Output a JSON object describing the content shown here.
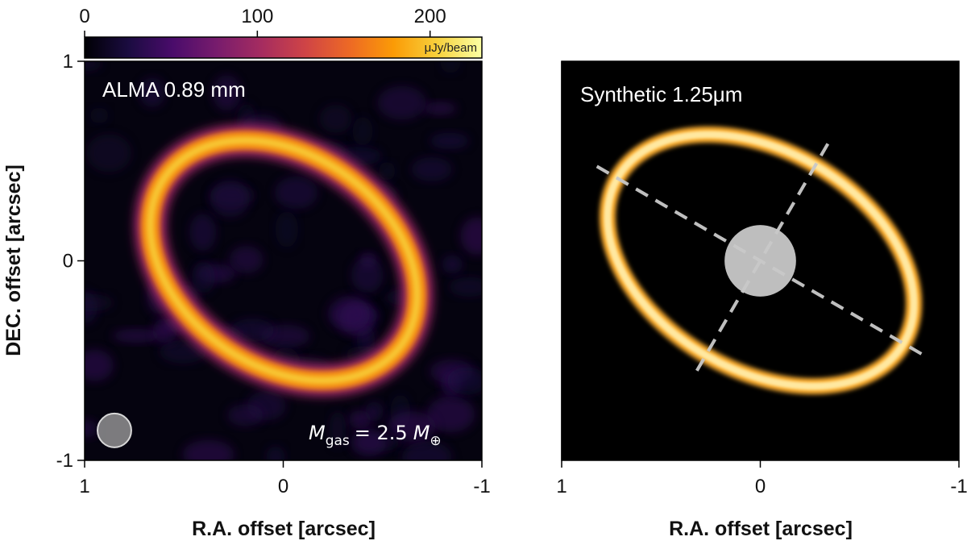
{
  "colors": {
    "inferno": [
      "#000004",
      "#1b0c41",
      "#4a0c6b",
      "#781c6d",
      "#a52c60",
      "#cf4446",
      "#ed6925",
      "#fb9b06",
      "#f7d13d",
      "#fcffa4"
    ],
    "afmhot": [
      "#000000",
      "#3a0000",
      "#7a1800",
      "#c34500",
      "#ef7a10",
      "#ffb030",
      "#ffe8a0"
    ],
    "marker": "#c8c8c8"
  },
  "chart_data": [
    {
      "type": "heatmap",
      "title": "ALMA 0.89 mm",
      "colormap": "inferno",
      "xlabel": "R.A. offset [arcsec]",
      "ylabel": "DEC. offset [arcsec]",
      "xlim": [
        1,
        -1
      ],
      "ylim": [
        -1,
        1
      ],
      "xticks": [
        1,
        0,
        -1
      ],
      "yticks": [
        1,
        0,
        -1
      ],
      "xtick_labels": [
        "1",
        "0",
        "-1"
      ],
      "ytick_labels": [
        "1",
        "0",
        "-1"
      ],
      "colorbar": {
        "range": [
          0,
          230
        ],
        "ticks": [
          0,
          100,
          200
        ],
        "tick_labels": [
          "0",
          "100",
          "200"
        ],
        "unit": "μJy/beam",
        "position": "top"
      },
      "ring": {
        "center": [
          0.0,
          0.0
        ],
        "semi_major": 0.73,
        "semi_minor": 0.53,
        "position_angle_deg": 35,
        "peak": 230
      },
      "beam": {
        "ra": 0.85,
        "dec": -0.85,
        "major": 0.17,
        "minor": 0.16
      },
      "annotation": {
        "symbol": "M",
        "subscript": "gas",
        "relation": "= 2.5",
        "unit_symbol": "M",
        "unit_subscript": "⊕"
      }
    },
    {
      "type": "heatmap",
      "title": "Synthetic 1.25μm",
      "colormap": "afmhot",
      "xlabel": "R.A. offset [arcsec]",
      "xlim": [
        1,
        -1
      ],
      "ylim": [
        -1,
        1
      ],
      "xticks": [
        1,
        0,
        -1
      ],
      "xtick_labels": [
        "1",
        "0",
        "-1"
      ],
      "ring": {
        "center": [
          0.0,
          0.0
        ],
        "semi_major": 0.83,
        "semi_minor": 0.55,
        "position_angle_deg": 30,
        "bright_side": "north"
      },
      "coronagraph": {
        "ra": 0.0,
        "dec": 0.0,
        "radius": 0.18
      },
      "axes_lines": [
        {
          "angle_deg": 30,
          "half_length": 0.95
        },
        {
          "angle_deg": 120,
          "half_length": 0.68
        }
      ]
    }
  ]
}
